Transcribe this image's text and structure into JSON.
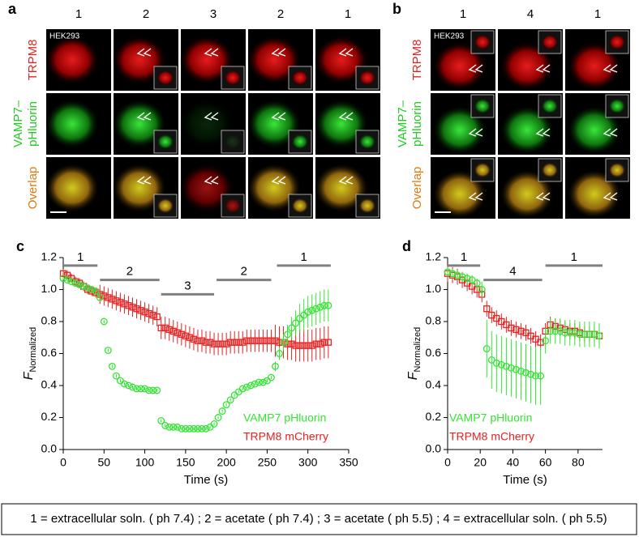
{
  "panels": [
    {
      "panel_label": "a",
      "cell_tag": "HEK293",
      "columns": [
        "1",
        "2",
        "3",
        "2",
        "1"
      ],
      "rows": [
        [
          "TRPM8"
        ],
        [
          "VAMP7–",
          "pHluorin"
        ],
        [
          "Overlap"
        ]
      ]
    },
    {
      "panel_label": "b",
      "cell_tag": "HEK293",
      "columns": [
        "1",
        "4",
        "1"
      ],
      "rows": [
        [
          "TRPM8"
        ],
        [
          "VAMP7–",
          "pHluorin"
        ],
        [
          "Overlap"
        ]
      ]
    }
  ],
  "chart_data": [
    {
      "type": "line",
      "panel_label": "c",
      "xlabel": "Time (s)",
      "ylabel": "F",
      "ylabel_sub": "Normalized",
      "xlim": [
        0,
        350
      ],
      "xticks": [
        0,
        50,
        100,
        150,
        200,
        250,
        300,
        350
      ],
      "ylim": [
        0,
        1.2
      ],
      "yticks": [
        {
          "value": 0,
          "label": "0.0"
        },
        0.2,
        0.4,
        0.6,
        0.8,
        {
          "value": 1,
          "label": "1.0"
        },
        1.2
      ],
      "legend": "lower right",
      "condition_bars": [
        {
          "label": "1",
          "x": [
            0,
            42
          ],
          "y": 1.15
        },
        {
          "label": "2",
          "x": [
            45,
            118
          ],
          "y": 1.06
        },
        {
          "label": "3",
          "x": [
            120,
            185
          ],
          "y": 0.97
        },
        {
          "label": "2",
          "x": [
            188,
            255
          ],
          "y": 1.06
        },
        {
          "label": "1",
          "x": [
            262,
            328
          ],
          "y": 1.15
        }
      ],
      "x": [
        0,
        5,
        10,
        15,
        20,
        25,
        30,
        35,
        40,
        45,
        50,
        55,
        60,
        65,
        70,
        75,
        80,
        85,
        90,
        95,
        100,
        105,
        110,
        115,
        120,
        125,
        130,
        135,
        140,
        145,
        150,
        155,
        160,
        165,
        170,
        175,
        180,
        185,
        190,
        195,
        200,
        205,
        210,
        215,
        220,
        225,
        230,
        235,
        240,
        245,
        250,
        255,
        260,
        265,
        270,
        275,
        280,
        285,
        290,
        295,
        300,
        305,
        310,
        315,
        320,
        325
      ],
      "series": [
        {
          "name": "VAMP7 pHluorin",
          "color": "#33e533",
          "marker": "circle",
          "values": [
            1.07,
            1.06,
            1.05,
            1.04,
            1.03,
            1.02,
            1.01,
            1.0,
            0.99,
            0.95,
            0.8,
            0.62,
            0.52,
            0.46,
            0.43,
            0.41,
            0.4,
            0.39,
            0.38,
            0.38,
            0.38,
            0.37,
            0.37,
            0.37,
            0.18,
            0.15,
            0.14,
            0.14,
            0.14,
            0.13,
            0.13,
            0.13,
            0.13,
            0.13,
            0.13,
            0.13,
            0.14,
            0.16,
            0.2,
            0.24,
            0.28,
            0.31,
            0.34,
            0.36,
            0.38,
            0.39,
            0.4,
            0.41,
            0.42,
            0.42,
            0.43,
            0.45,
            0.52,
            0.6,
            0.67,
            0.72,
            0.76,
            0.79,
            0.82,
            0.84,
            0.86,
            0.87,
            0.88,
            0.89,
            0.9,
            0.9
          ],
          "errors": [
            0.01,
            0.01,
            0.01,
            0.01,
            0.01,
            0.01,
            0.01,
            0.01,
            0.01,
            0.01,
            0.01,
            0.01,
            0.01,
            0.01,
            0.01,
            0.01,
            0.01,
            0.01,
            0.01,
            0.01,
            0.01,
            0.01,
            0.01,
            0.01,
            0.01,
            0.01,
            0.01,
            0.01,
            0.01,
            0.01,
            0.01,
            0.01,
            0.01,
            0.01,
            0.01,
            0.01,
            0.01,
            0.01,
            0.01,
            0.01,
            0.01,
            0.01,
            0.01,
            0.01,
            0.01,
            0.01,
            0.01,
            0.01,
            0.01,
            0.01,
            0.01,
            0.01,
            0.03,
            0.04,
            0.05,
            0.06,
            0.07,
            0.08,
            0.09,
            0.1,
            0.1,
            0.1,
            0.1,
            0.1,
            0.1,
            0.1
          ]
        },
        {
          "name": "TRPM8 mCherry",
          "color": "#e52222",
          "marker": "square",
          "values": [
            1.1,
            1.09,
            1.07,
            1.05,
            1.04,
            1.02,
            1.0,
            0.99,
            0.98,
            0.97,
            0.96,
            0.95,
            0.94,
            0.93,
            0.92,
            0.91,
            0.9,
            0.89,
            0.88,
            0.87,
            0.86,
            0.85,
            0.84,
            0.83,
            0.76,
            0.76,
            0.75,
            0.74,
            0.73,
            0.72,
            0.71,
            0.7,
            0.69,
            0.68,
            0.68,
            0.67,
            0.67,
            0.66,
            0.66,
            0.66,
            0.66,
            0.67,
            0.67,
            0.67,
            0.67,
            0.68,
            0.68,
            0.68,
            0.68,
            0.68,
            0.68,
            0.68,
            0.68,
            0.67,
            0.67,
            0.66,
            0.66,
            0.65,
            0.65,
            0.65,
            0.65,
            0.65,
            0.66,
            0.66,
            0.67,
            0.67
          ],
          "errors": [
            0.03,
            0.03,
            0.03,
            0.03,
            0.03,
            0.03,
            0.03,
            0.03,
            0.03,
            0.06,
            0.06,
            0.06,
            0.06,
            0.06,
            0.06,
            0.06,
            0.06,
            0.06,
            0.06,
            0.06,
            0.06,
            0.06,
            0.06,
            0.06,
            0.07,
            0.07,
            0.07,
            0.07,
            0.07,
            0.07,
            0.07,
            0.07,
            0.07,
            0.07,
            0.07,
            0.07,
            0.07,
            0.07,
            0.07,
            0.07,
            0.07,
            0.07,
            0.07,
            0.07,
            0.07,
            0.07,
            0.07,
            0.07,
            0.07,
            0.07,
            0.07,
            0.07,
            0.1,
            0.1,
            0.1,
            0.1,
            0.1,
            0.1,
            0.1,
            0.1,
            0.1,
            0.1,
            0.1,
            0.1,
            0.1,
            0.1
          ]
        }
      ]
    },
    {
      "type": "line",
      "panel_label": "d",
      "xlabel": "Time (s)",
      "ylabel": "F",
      "ylabel_sub": "Normalized",
      "xlim": [
        0,
        95
      ],
      "xticks": [
        0,
        20,
        40,
        60,
        80
      ],
      "ylim": [
        0,
        1.2
      ],
      "yticks": [
        {
          "value": 0,
          "label": "0.0"
        },
        0.2,
        0.4,
        0.6,
        0.8,
        {
          "value": 1,
          "label": "1.0"
        },
        1.2
      ],
      "legend": "lower left",
      "condition_bars": [
        {
          "label": "1",
          "x": [
            0,
            20
          ],
          "y": 1.15
        },
        {
          "label": "4",
          "x": [
            22,
            58
          ],
          "y": 1.06
        },
        {
          "label": "1",
          "x": [
            60,
            95
          ],
          "y": 1.15
        }
      ],
      "x": [
        0,
        3,
        6,
        9,
        12,
        15,
        18,
        21,
        24,
        27,
        30,
        33,
        36,
        39,
        42,
        45,
        48,
        51,
        54,
        57,
        60,
        63,
        66,
        69,
        72,
        75,
        78,
        81,
        84,
        87,
        90,
        93
      ],
      "series": [
        {
          "name": "VAMP7 pHluorin",
          "color": "#33e533",
          "marker": "circle",
          "values": [
            1.11,
            1.1,
            1.09,
            1.08,
            1.07,
            1.06,
            1.04,
            1.0,
            0.63,
            0.56,
            0.54,
            0.53,
            0.52,
            0.51,
            0.5,
            0.49,
            0.48,
            0.47,
            0.46,
            0.46,
            0.68,
            0.74,
            0.74,
            0.74,
            0.73,
            0.73,
            0.73,
            0.72,
            0.72,
            0.72,
            0.72,
            0.71
          ],
          "errors": [
            0.03,
            0.03,
            0.03,
            0.03,
            0.03,
            0.03,
            0.03,
            0.05,
            0.18,
            0.18,
            0.18,
            0.18,
            0.18,
            0.18,
            0.18,
            0.18,
            0.18,
            0.18,
            0.18,
            0.18,
            0.08,
            0.08,
            0.08,
            0.08,
            0.08,
            0.08,
            0.08,
            0.08,
            0.08,
            0.08,
            0.08,
            0.08
          ]
        },
        {
          "name": "TRPM8 mCherry",
          "color": "#e52222",
          "marker": "square",
          "values": [
            1.1,
            1.09,
            1.08,
            1.06,
            1.04,
            1.02,
            1.0,
            0.97,
            0.88,
            0.84,
            0.82,
            0.8,
            0.78,
            0.76,
            0.75,
            0.74,
            0.73,
            0.71,
            0.69,
            0.67,
            0.74,
            0.78,
            0.77,
            0.76,
            0.75,
            0.74,
            0.74,
            0.73,
            0.72,
            0.72,
            0.72,
            0.71
          ],
          "errors": [
            0.05,
            0.05,
            0.05,
            0.05,
            0.05,
            0.05,
            0.05,
            0.05,
            0.05,
            0.05,
            0.05,
            0.05,
            0.05,
            0.05,
            0.05,
            0.05,
            0.05,
            0.05,
            0.05,
            0.05,
            0.05,
            0.05,
            0.05,
            0.05,
            0.05,
            0.05,
            0.05,
            0.05,
            0.05,
            0.05,
            0.05,
            0.05
          ]
        }
      ]
    }
  ],
  "footnote": "1 = extracellular soln. ( ph 7.4) ; 2 = acetate ( ph 7.4) ; 3 = acetate ( ph 5.5) ; 4 = extracellular soln. ( ph 5.5)"
}
